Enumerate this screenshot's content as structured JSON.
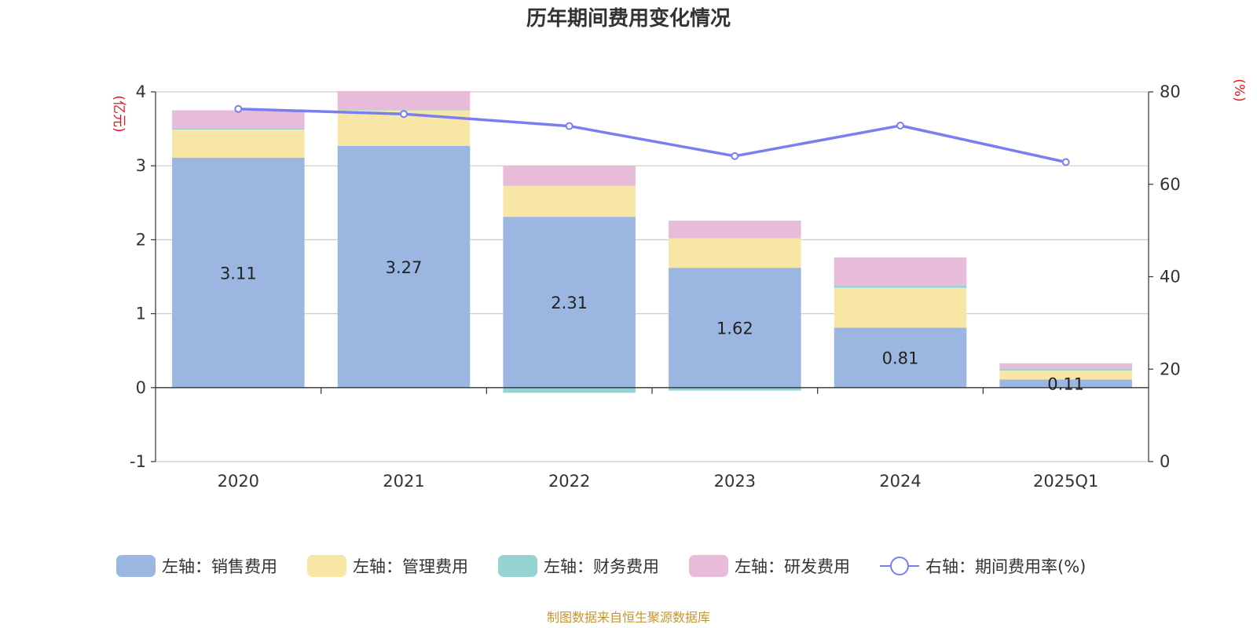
{
  "chart_data": {
    "type": "bar",
    "stacked": true,
    "title": "历年期间费用变化情况",
    "left_axis_unit": "(亿元)",
    "right_axis_unit": "(%)",
    "categories": [
      "2020",
      "2021",
      "2022",
      "2023",
      "2024",
      "2025Q1"
    ],
    "left_ylim": [
      -1,
      4
    ],
    "left_ticks": [
      -1,
      0,
      1,
      2,
      3,
      4
    ],
    "right_ylim": [
      0,
      80
    ],
    "right_ticks": [
      0,
      20,
      40,
      60,
      80
    ],
    "series": [
      {
        "name": "左轴：销售费用",
        "axis": "left",
        "type": "bar",
        "color": "#9bb7e1",
        "values": [
          3.11,
          3.27,
          2.31,
          1.62,
          0.81,
          0.11
        ],
        "labels": [
          "3.11",
          "3.27",
          "2.31",
          "1.62",
          "0.81",
          "0.11"
        ]
      },
      {
        "name": "左轴：管理费用",
        "axis": "left",
        "type": "bar",
        "color": "#f8e6a6",
        "values": [
          0.38,
          0.48,
          0.42,
          0.4,
          0.54,
          0.12
        ]
      },
      {
        "name": "左轴：财务费用",
        "axis": "left",
        "type": "bar",
        "color": "#96d3d4",
        "values": [
          0.02,
          0.01,
          -0.07,
          -0.04,
          0.03,
          0.03
        ]
      },
      {
        "name": "左轴：研发费用",
        "axis": "left",
        "type": "bar",
        "color": "#e7bbd9",
        "values": [
          0.24,
          0.25,
          0.27,
          0.24,
          0.38,
          0.07
        ]
      },
      {
        "name": "右轴：期间费用率(%)",
        "axis": "right",
        "type": "line",
        "color": "#7b7ef0",
        "values": [
          76.3,
          75.2,
          72.6,
          66.1,
          72.7,
          64.8
        ]
      }
    ]
  },
  "footer": {
    "source": "制图数据来自恒生聚源数据库"
  }
}
